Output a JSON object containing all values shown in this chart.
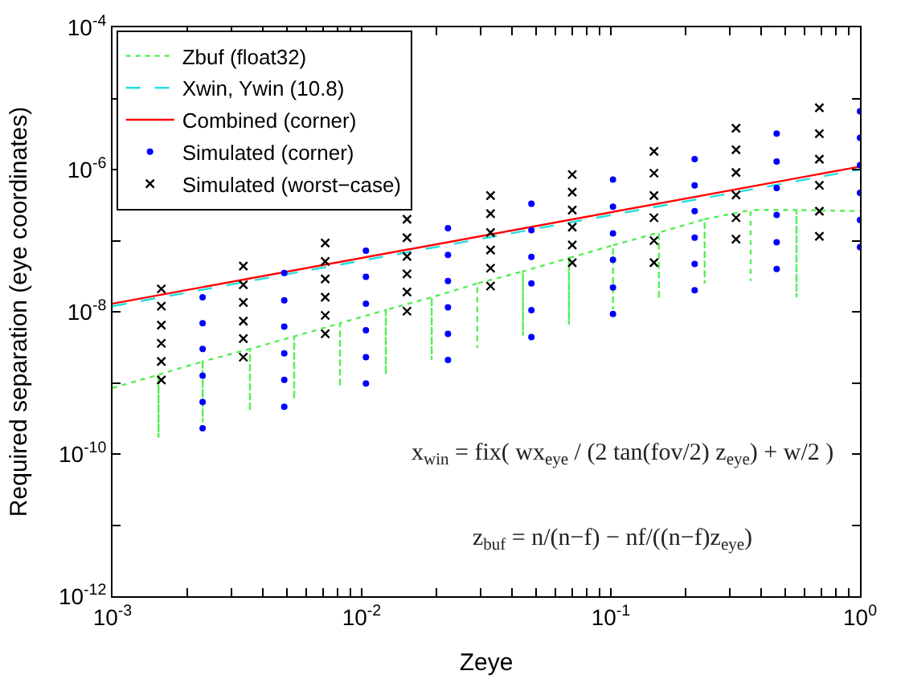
{
  "chart_data": {
    "type": "scatter",
    "xlabel": "Zeye",
    "ylabel": "Required separation (eye coordinates)",
    "log": "xy",
    "legend": "top left",
    "xlim": [
      0.001,
      1
    ],
    "ylim": [
      1e-12,
      0.0001
    ],
    "xticks": [
      {
        "value": 0.001,
        "label": "10$^{-3}$"
      },
      {
        "value": 0.002,
        "label": null
      },
      {
        "value": 0.003,
        "label": null
      },
      {
        "value": 0.004,
        "label": null
      },
      {
        "value": 0.005,
        "label": null
      },
      {
        "value": 0.006,
        "label": null
      },
      {
        "value": 0.007,
        "label": null
      },
      {
        "value": 0.008,
        "label": null
      },
      {
        "value": 0.009,
        "label": null
      },
      {
        "value": 0.01,
        "label": "10$^{-2}$"
      },
      {
        "value": 0.02,
        "label": null
      },
      {
        "value": 0.03,
        "label": null
      },
      {
        "value": 0.04,
        "label": null
      },
      {
        "value": 0.05,
        "label": null
      },
      {
        "value": 0.06,
        "label": null
      },
      {
        "value": 0.07,
        "label": null
      },
      {
        "value": 0.08,
        "label": null
      },
      {
        "value": 0.09,
        "label": null
      },
      {
        "value": 0.1,
        "label": "10$^{-1}$"
      },
      {
        "value": 0.2,
        "label": null
      },
      {
        "value": 0.3,
        "label": null
      },
      {
        "value": 0.4,
        "label": null
      },
      {
        "value": 0.5,
        "label": null
      },
      {
        "value": 0.6,
        "label": null
      },
      {
        "value": 0.7,
        "label": null
      },
      {
        "value": 0.8,
        "label": null
      },
      {
        "value": 0.9,
        "label": null
      },
      {
        "value": 1,
        "label": "10$^{0}$"
      }
    ],
    "yticks": [
      {
        "value": 1e-12,
        "label": "10$^{-12}$"
      },
      {
        "value": 1e-11,
        "label": null
      },
      {
        "value": 1e-10,
        "label": "10$^{-10}$"
      },
      {
        "value": 1e-09,
        "label": null
      },
      {
        "value": 1e-08,
        "label": "10$^{-8}$"
      },
      {
        "value": 1e-07,
        "label": null
      },
      {
        "value": 1e-06,
        "label": "10$^{-6}$"
      },
      {
        "value": 1e-05,
        "label": null
      },
      {
        "value": 0.0001,
        "label": "10$^{-4}$"
      }
    ],
    "series": [
      {
        "name": "Zbuf (float32)",
        "type": "line",
        "color": "#55ee55",
        "line_style": "dotted",
        "marker": "none",
        "x": [
          0.001,
          0.00153,
          0.00153,
          0.00153,
          0.0023,
          0.0023,
          0.0023,
          0.00356,
          0.00356,
          0.00356,
          0.00536,
          0.00536,
          0.00536,
          0.00818,
          0.00818,
          0.00818,
          0.0125,
          0.0125,
          0.0125,
          0.0191,
          0.0191,
          0.0191,
          0.0291,
          0.0291,
          0.0291,
          0.0444,
          0.0444,
          0.0444,
          0.0679,
          0.0679,
          0.0679,
          0.102,
          0.102,
          0.102,
          0.156,
          0.156,
          0.156,
          0.238,
          0.238,
          0.238,
          0.364,
          0.364,
          0.364,
          0.556,
          0.556,
          0.556,
          1
        ],
        "values": [
          8.5e-10,
          1.3e-09,
          1.7e-10,
          1.3e-09,
          2e-09,
          2.8e-10,
          2e-09,
          3e-09,
          4e-10,
          3e-09,
          4.5e-09,
          5.9e-10,
          4.5e-09,
          6.9e-09,
          8.8e-10,
          6.9e-09,
          1.06e-08,
          1.3e-09,
          1.06e-08,
          1.6e-08,
          2.1e-09,
          1.6e-08,
          2.5e-08,
          3.1e-09,
          2.5e-08,
          3.7e-08,
          4.6e-09,
          3.7e-08,
          5.7e-08,
          6.6e-09,
          5.7e-08,
          8.6e-08,
          1.08e-08,
          8.6e-08,
          1.3e-07,
          1.5e-08,
          1.3e-07,
          2e-07,
          2.5e-08,
          2e-07,
          2.7e-07,
          2.7e-08,
          2.7e-07,
          2.7e-07,
          1.6e-08,
          2.7e-07,
          2.6e-07
        ]
      },
      {
        "name": "Xwin, Ywin (10.8)",
        "type": "line",
        "color": "#22dddd",
        "line_style": "dashed",
        "marker": "none",
        "x": [
          0.001,
          1
        ],
        "values": [
          1.2e-08,
          1e-06
        ]
      },
      {
        "name": "Combined (corner)",
        "type": "line",
        "color": "#ff0000",
        "line_style": "solid",
        "marker": "none",
        "x": [
          0.001,
          1
        ],
        "values": [
          1.3e-08,
          1.1e-06
        ]
      },
      {
        "name": "Simulated (corner)",
        "color": "#0000ff",
        "marker": "circle",
        "x": [
          0.0023,
          0.0023,
          0.0023,
          0.0023,
          0.0023,
          0.0023,
          0.00489,
          0.00489,
          0.00489,
          0.00489,
          0.00489,
          0.00489,
          0.0104,
          0.0104,
          0.0104,
          0.0104,
          0.0104,
          0.0104,
          0.0222,
          0.0222,
          0.0222,
          0.0222,
          0.0222,
          0.0222,
          0.048,
          0.048,
          0.048,
          0.048,
          0.048,
          0.048,
          0.102,
          0.102,
          0.102,
          0.102,
          0.102,
          0.102,
          0.217,
          0.217,
          0.217,
          0.217,
          0.217,
          0.217,
          0.463,
          0.463,
          0.463,
          0.463,
          0.463,
          0.463,
          1,
          1,
          1,
          1,
          1,
          1
        ],
        "values": [
          1.6e-08,
          6.9e-09,
          3e-09,
          1.26e-09,
          5.4e-10,
          2.3e-10,
          3.5e-08,
          1.45e-08,
          6.2e-09,
          2.6e-09,
          1.1e-09,
          4.6e-10,
          7.2e-08,
          3.1e-08,
          1.3e-08,
          5.5e-09,
          2.3e-09,
          9.8e-10,
          1.5e-07,
          6.3e-08,
          2.7e-08,
          1.15e-08,
          4.9e-09,
          2.1e-09,
          3.3e-07,
          1.4e-07,
          5.9e-08,
          2.5e-08,
          1.05e-08,
          4.4e-09,
          7.2e-07,
          3e-07,
          1.26e-07,
          5.4e-08,
          2.2e-08,
          9.3e-09,
          1.4e-06,
          6e-07,
          2.6e-07,
          1.1e-07,
          4.7e-08,
          2e-08,
          3.2e-06,
          1.3e-06,
          5.5e-07,
          2.3e-07,
          9.5e-08,
          4e-08,
          6.6e-06,
          2.8e-06,
          1.15e-06,
          4.7e-07,
          1.95e-07,
          8.1e-08
        ]
      },
      {
        "name": "Simulated (worst−case)",
        "color": "#000000",
        "marker": "cross",
        "x": [
          0.00157,
          0.00157,
          0.00157,
          0.00157,
          0.00157,
          0.00157,
          0.00335,
          0.00335,
          0.00335,
          0.00335,
          0.00335,
          0.00335,
          0.00714,
          0.00714,
          0.00714,
          0.00714,
          0.00714,
          0.00714,
          0.0152,
          0.0152,
          0.0152,
          0.0152,
          0.0152,
          0.0152,
          0.0329,
          0.0329,
          0.0329,
          0.0329,
          0.0329,
          0.0329,
          0.07,
          0.07,
          0.07,
          0.07,
          0.07,
          0.07,
          0.149,
          0.149,
          0.149,
          0.149,
          0.149,
          0.149,
          0.318,
          0.318,
          0.318,
          0.318,
          0.318,
          0.318,
          0.687,
          0.687,
          0.687,
          0.687,
          0.687,
          0.687
        ],
        "values": [
          2.1e-08,
          1.2e-08,
          6.5e-09,
          3.6e-09,
          2e-09,
          1.1e-09,
          4.4e-08,
          2.4e-08,
          1.35e-08,
          7.4e-09,
          4.2e-09,
          2.3e-09,
          9.3e-08,
          5.1e-08,
          2.9e-08,
          1.6e-08,
          8.9e-09,
          4.9e-09,
          2e-07,
          1.1e-07,
          6e-08,
          3.4e-08,
          1.9e-08,
          1.02e-08,
          4.3e-07,
          2.4e-07,
          1.3e-07,
          7.4e-08,
          4.1e-08,
          2.3e-08,
          8.5e-07,
          4.8e-07,
          2.7e-07,
          1.55e-07,
          8.7e-08,
          4.9e-08,
          1.8e-06,
          8.9e-07,
          4.3e-07,
          2.1e-07,
          1e-07,
          4.9e-08,
          3.8e-06,
          1.9e-06,
          9.1e-07,
          4.4e-07,
          2.1e-07,
          1.05e-07,
          7.4e-06,
          3.2e-06,
          1.4e-06,
          6e-07,
          2.6e-07,
          1.15e-07
        ]
      }
    ],
    "annotations": [
      "x$_{win}$ = fix( wx$_{eye}$ / (2 tan(fov/2) z$_{eye}$) + w/2 )",
      "z$_{buf}$ = n/(n−f) − nf/((n−f)z$_{eye}$)"
    ]
  }
}
